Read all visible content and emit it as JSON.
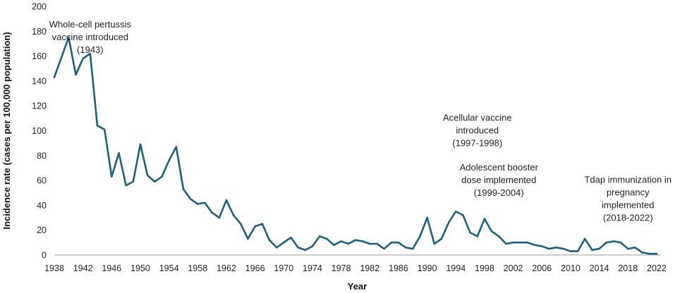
{
  "chart_data": {
    "type": "line",
    "title": "",
    "xlabel": "Year",
    "ylabel": "Incidence rate (cases per 100,000 population)",
    "xlim": [
      1938,
      2023
    ],
    "ylim": [
      0,
      200
    ],
    "y_ticks": [
      0,
      20,
      40,
      60,
      80,
      100,
      120,
      140,
      160,
      180,
      200
    ],
    "x_tick_labels": [
      "1938",
      "1942",
      "1946",
      "1950",
      "1954",
      "1958",
      "1962",
      "1966",
      "1970",
      "1974",
      "1978",
      "1982",
      "1986",
      "1990",
      "1994",
      "1998",
      "2002",
      "2006",
      "2010",
      "2014",
      "2018",
      "2022"
    ],
    "grid": false,
    "line_color": "#1f5f7f",
    "series": [
      {
        "name": "Incidence rate",
        "x": [
          1938,
          1939,
          1940,
          1941,
          1942,
          1943,
          1944,
          1945,
          1946,
          1947,
          1948,
          1949,
          1950,
          1951,
          1952,
          1953,
          1954,
          1955,
          1956,
          1957,
          1958,
          1959,
          1960,
          1961,
          1962,
          1963,
          1964,
          1965,
          1966,
          1967,
          1968,
          1969,
          1970,
          1971,
          1972,
          1973,
          1974,
          1975,
          1976,
          1977,
          1978,
          1979,
          1980,
          1981,
          1982,
          1983,
          1984,
          1985,
          1986,
          1987,
          1988,
          1989,
          1990,
          1991,
          1992,
          1993,
          1994,
          1995,
          1996,
          1997,
          1998,
          1999,
          2000,
          2001,
          2002,
          2003,
          2004,
          2005,
          2006,
          2007,
          2008,
          2009,
          2010,
          2011,
          2012,
          2013,
          2014,
          2015,
          2016,
          2017,
          2018,
          2019,
          2020,
          2021,
          2022
        ],
        "y": [
          143,
          159,
          175,
          145,
          158,
          162,
          104,
          101,
          63,
          82,
          56,
          59,
          89,
          64,
          59,
          63,
          76,
          87,
          53,
          45,
          41,
          42,
          34,
          30,
          44,
          32,
          25,
          13,
          23,
          25,
          12,
          6,
          10,
          14,
          6,
          4,
          7,
          15,
          13,
          8,
          11,
          9,
          12,
          11,
          9,
          9,
          5,
          10,
          10,
          6,
          5,
          15,
          30,
          9,
          13,
          26,
          35,
          32,
          18,
          15,
          29,
          19,
          15,
          9,
          10,
          10,
          10,
          8,
          7,
          5,
          6,
          5,
          3,
          3,
          13,
          4,
          5,
          10,
          11,
          10,
          5,
          6,
          2,
          1,
          1
        ]
      }
    ],
    "annotations": [
      {
        "year": 1943,
        "value": 175,
        "lines": [
          "Whole-cell pertussis",
          "vaccine introduced",
          "(1943)"
        ]
      },
      {
        "year": 1997,
        "value": 100,
        "lines": [
          "Acellular vaccine",
          "introduced",
          "(1997-1998)"
        ]
      },
      {
        "year": 2000,
        "value": 60,
        "lines": [
          "Adolescent booster",
          "dose implemented",
          "(1999-2004)"
        ]
      },
      {
        "year": 2018,
        "value": 45,
        "lines": [
          "Tdap immunization in",
          "pregnancy",
          "implemented",
          "(2018-2022)"
        ]
      }
    ]
  }
}
